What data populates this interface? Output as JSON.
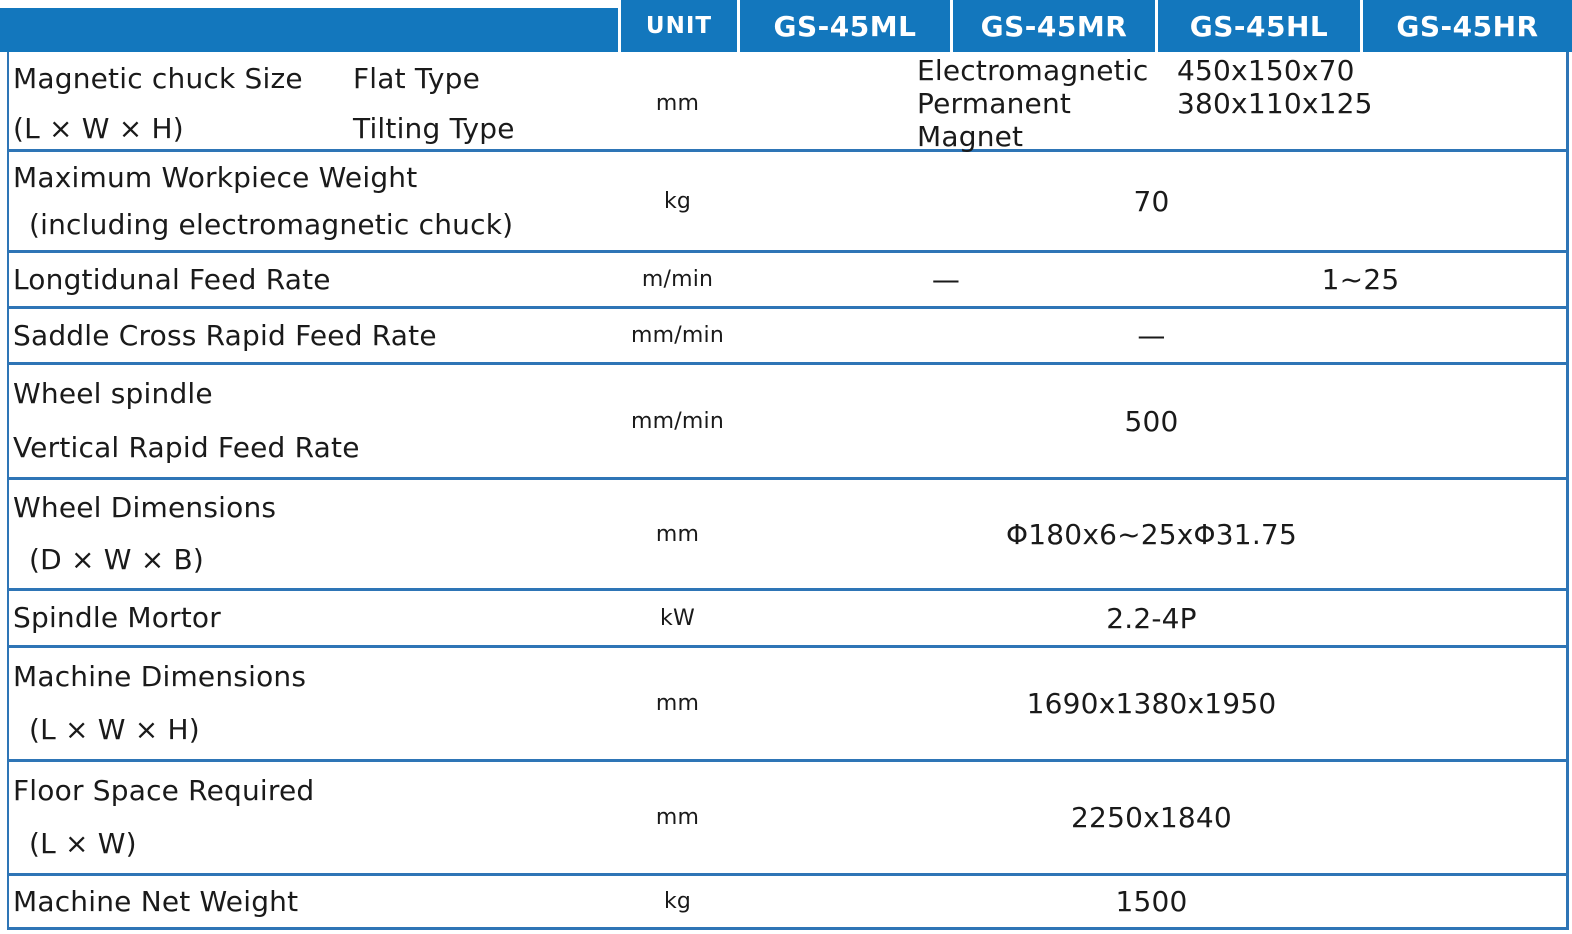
{
  "colors": {
    "header_bg": "#1377BD",
    "border": "#2E75B6",
    "text": "#1A1A1A",
    "header_text": "#FFFFFF"
  },
  "header": {
    "unit": "UNIT",
    "models": [
      "GS-45ML",
      "GS-45MR",
      "GS-45HL",
      "GS-45HR"
    ]
  },
  "rows": {
    "magnetic_chuck": {
      "label_line1": "Magnetic chuck Size",
      "label_line2": "(L × W × H)",
      "sub1": "Flat Type",
      "sub2": "Tilting Type",
      "unit": "mm",
      "value_line1_label": "Electromagnetic",
      "value_line1_dims": "450x150x70",
      "value_line2_label": "Permanent Magnet",
      "value_line2_dims": "380x110x125"
    },
    "max_weight": {
      "label_line1": "Maximum Workpiece Weight",
      "label_line2": "(including electromagnetic chuck)",
      "unit": "kg",
      "value": "70"
    },
    "longitudinal_feed": {
      "label": "Longtidunal Feed Rate",
      "unit": "m/min",
      "value_ml_mr": "—",
      "value_hl_hr": "1~25"
    },
    "saddle_cross": {
      "label": "Saddle Cross Rapid Feed Rate",
      "unit": "mm/min",
      "value": "—"
    },
    "wheel_spindle": {
      "label_line1": "Wheel spindle",
      "label_line2": "Vertical Rapid Feed Rate",
      "unit": "mm/min",
      "value": "500"
    },
    "wheel_dimensions": {
      "label_line1": "Wheel Dimensions",
      "label_line2": "(D × W × B)",
      "unit": "mm",
      "value": "Φ180x6~25xΦ31.75"
    },
    "spindle_motor": {
      "label": "Spindle Mortor",
      "unit": "kW",
      "value": "2.2-4P"
    },
    "machine_dimensions": {
      "label_line1": "Machine Dimensions",
      "label_line2": "(L × W × H)",
      "unit": "mm",
      "value": "1690x1380x1950"
    },
    "floor_space": {
      "label_line1": "Floor Space Required",
      "label_line2": "(L × W)",
      "unit": "mm",
      "value": "2250x1840"
    },
    "net_weight": {
      "label": "Machine Net Weight",
      "unit": "kg",
      "value": "1500"
    }
  }
}
